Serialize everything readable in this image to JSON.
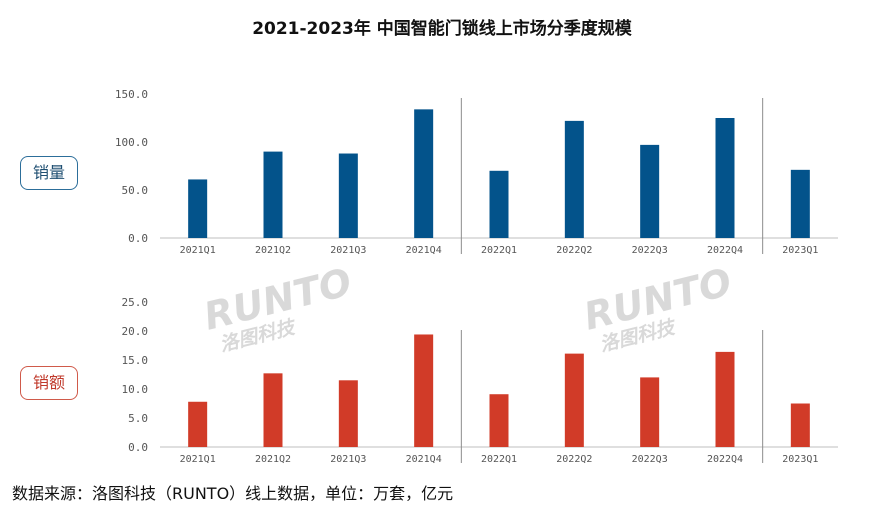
{
  "title": "2021-2023年 中国智能门锁线上市场分季度规模",
  "labels": {
    "sales": "销量",
    "revenue": "销额"
  },
  "source": "数据来源：洛图科技（RUNTO）线上数据，单位：万套，亿元",
  "watermark": {
    "brand": "RUNTO",
    "name": "洛图科技"
  },
  "colors": {
    "sales": "#03538b",
    "revenue": "#d13b28",
    "axis": "#bfbfbf"
  },
  "chart_data": [
    {
      "type": "bar",
      "name": "销量",
      "categories": [
        "2021Q1",
        "2021Q2",
        "2021Q3",
        "2021Q4",
        "2022Q1",
        "2022Q2",
        "2022Q3",
        "2022Q4",
        "2023Q1"
      ],
      "values": [
        61,
        90,
        88,
        134,
        70,
        122,
        97,
        125,
        71
      ],
      "yticks": [
        "0.0",
        "50.0",
        "100.0",
        "150.0"
      ],
      "ylim": [
        0,
        150
      ],
      "grid": false
    },
    {
      "type": "bar",
      "name": "销额",
      "categories": [
        "2021Q1",
        "2021Q2",
        "2021Q3",
        "2021Q4",
        "2022Q1",
        "2022Q2",
        "2022Q3",
        "2022Q4",
        "2023Q1"
      ],
      "values": [
        7.8,
        12.7,
        11.5,
        19.4,
        9.1,
        16.1,
        12.0,
        16.4,
        7.5
      ],
      "yticks": [
        "0.0",
        "5.0",
        "10.0",
        "15.0",
        "20.0",
        "25.0"
      ],
      "ylim": [
        0,
        25
      ],
      "grid": false
    }
  ]
}
